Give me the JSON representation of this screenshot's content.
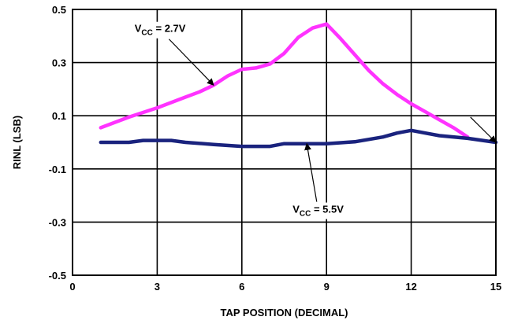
{
  "chart_data": {
    "type": "line",
    "xlabel": "TAP POSITION (DECIMAL)",
    "ylabel": "RINL (LSB)",
    "xlim": [
      0,
      15
    ],
    "ylim": [
      -0.5,
      0.5
    ],
    "x_ticks": [
      0,
      3,
      6,
      9,
      12,
      15
    ],
    "x_tick_labels": [
      "0",
      "3",
      "6",
      "9",
      "12",
      "15"
    ],
    "y_ticks": [
      -0.5,
      -0.3,
      -0.1,
      0.1,
      0.3,
      0.5
    ],
    "y_tick_labels": [
      "-0.5",
      "-0.3",
      "-0.1",
      "0.1",
      "0.3",
      "0.5"
    ],
    "grid": true,
    "series": [
      {
        "color": "#ff33ff",
        "x": [
          1,
          2,
          3,
          4,
          4.5,
          5,
          5.5,
          6,
          6.5,
          7,
          7.5,
          8,
          8.5,
          9,
          9.5,
          10,
          10.5,
          11,
          11.5,
          12,
          12.5,
          13,
          13.5,
          14
        ],
        "y": [
          0.055,
          0.095,
          0.13,
          0.17,
          0.19,
          0.215,
          0.25,
          0.275,
          0.28,
          0.295,
          0.335,
          0.395,
          0.43,
          0.445,
          0.39,
          0.33,
          0.27,
          0.22,
          0.18,
          0.145,
          0.115,
          0.085,
          0.055,
          0.02
        ]
      },
      {
        "color": "#1a237e",
        "x": [
          1,
          2,
          2.5,
          3.5,
          4,
          5,
          6,
          7,
          7.5,
          8,
          9,
          10,
          11,
          11.5,
          12,
          12.5,
          13,
          14,
          15
        ],
        "y": [
          0.0,
          0.0,
          0.007,
          0.007,
          0.0,
          -0.008,
          -0.015,
          -0.015,
          -0.005,
          -0.005,
          -0.005,
          0.002,
          0.02,
          0.035,
          0.045,
          0.035,
          0.025,
          0.015,
          0.0
        ]
      }
    ],
    "annotations": [
      {
        "main": "V",
        "sub": "CC",
        "rest": " = 2.7V",
        "x_text": 2.2,
        "y_text": 0.415,
        "target_x": 5,
        "target_y": 0.215
      },
      {
        "main": "V",
        "sub": "CC",
        "rest": " = 5.5V",
        "x_text": 7.8,
        "y_text": -0.265,
        "target_x": 8.3,
        "target_y": -0.005
      },
      {
        "main": "",
        "sub": "",
        "rest": "",
        "x_text": 14.1,
        "y_text": 0.095,
        "target_x": 15,
        "target_y": 0.0
      }
    ]
  }
}
